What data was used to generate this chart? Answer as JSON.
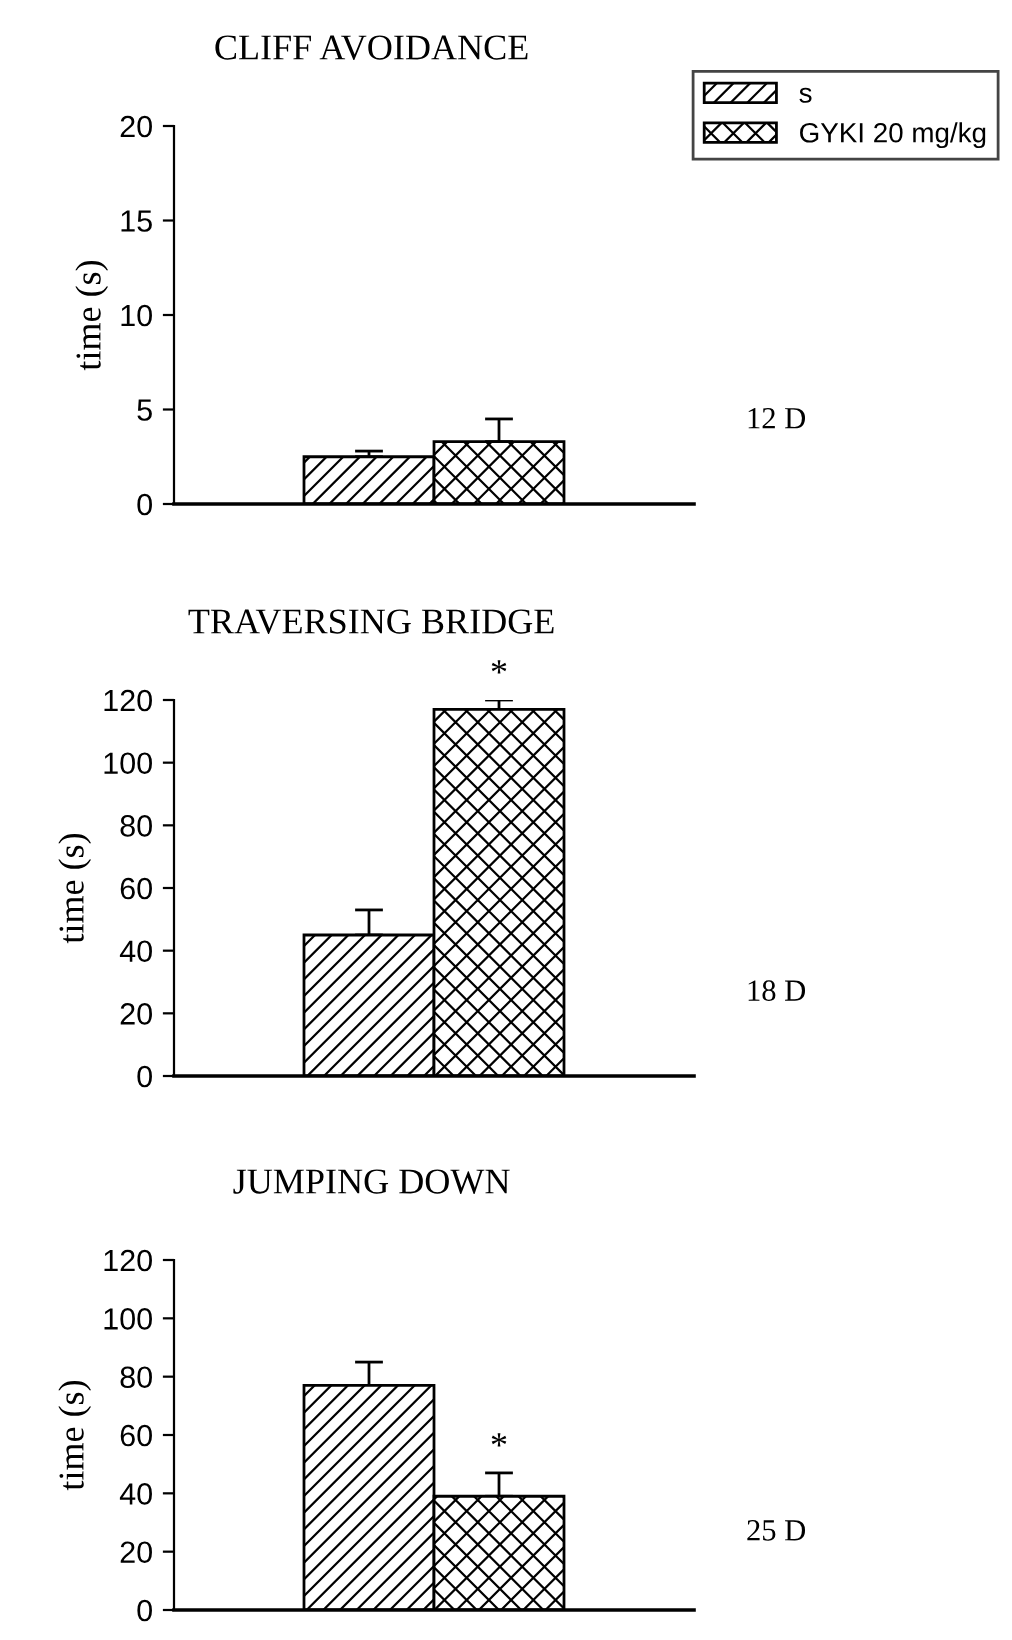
{
  "chart_data": [
    {
      "type": "bar",
      "title": "CLIFF AVOIDANCE",
      "ylabel": "time (s)",
      "categories": [
        null
      ],
      "ylim": [
        0,
        20
      ],
      "yticks": [
        0,
        5,
        10,
        15,
        20
      ],
      "legend": "top right",
      "annotations": [
        "12 D"
      ],
      "series": [
        {
          "name": "s",
          "color": "#000000",
          "values": [
            2.5
          ],
          "errors": [
            [
              2.5,
              2.8
            ]
          ]
        },
        {
          "name": "GYKI 20 mg/kg",
          "color": "#000000",
          "values": [
            3.3
          ],
          "errors": [
            [
              3.3,
              4.5
            ]
          ]
        }
      ]
    },
    {
      "type": "bar",
      "title": "TRAVERSING BRIDGE",
      "ylabel": "time (s)",
      "categories": [
        null
      ],
      "ylim": [
        0,
        120
      ],
      "yticks": [
        0,
        20,
        40,
        60,
        80,
        100,
        120
      ],
      "annotations": [
        "*",
        "18 D"
      ],
      "series": [
        {
          "color": "#000000",
          "values": [
            45
          ],
          "errors": [
            [
              45,
              53
            ]
          ]
        },
        {
          "color": "#000000",
          "values": [
            117
          ],
          "errors": [
            [
              117,
              120
            ]
          ]
        }
      ]
    },
    {
      "type": "bar",
      "title": "JUMPING DOWN",
      "ylabel": "time (s)",
      "categories": [
        null
      ],
      "ylim": [
        0,
        120
      ],
      "yticks": [
        0,
        20,
        40,
        60,
        80,
        100,
        120
      ],
      "annotations": [
        "*",
        "25 D"
      ],
      "series": [
        {
          "color": "#000000",
          "values": [
            77
          ],
          "errors": [
            [
              77,
              85
            ]
          ]
        },
        {
          "color": "#000000",
          "values": [
            39
          ],
          "errors": [
            [
              39,
              47
            ]
          ]
        }
      ]
    }
  ]
}
